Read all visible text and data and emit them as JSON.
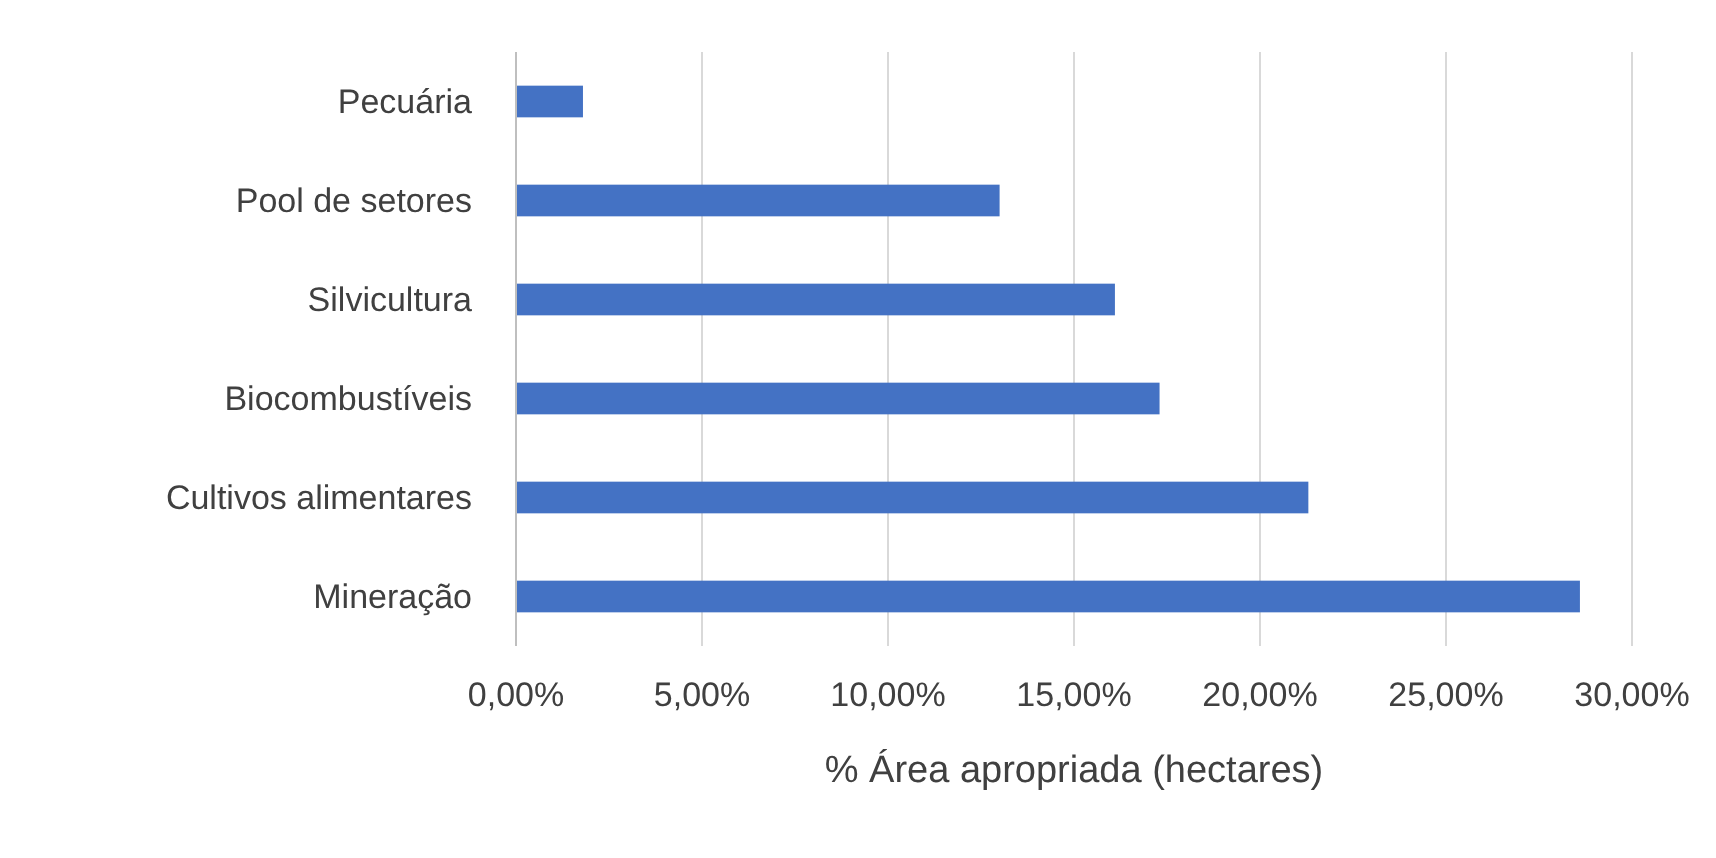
{
  "chart_data": {
    "type": "bar",
    "orientation": "horizontal",
    "xlabel": "% Área apropriada (hectares)",
    "categories": [
      "Pecuária",
      "Pool de setores",
      "Silvicultura",
      "Biocombustíveis",
      "Cultivos alimentares",
      "Mineração"
    ],
    "values": [
      1.8,
      13.0,
      16.1,
      17.3,
      21.3,
      28.6
    ],
    "color": "#4472c4",
    "xlim": [
      0,
      30
    ],
    "xticks": [
      {
        "value": 0,
        "label": "0,00%"
      },
      {
        "value": 5,
        "label": "5,00%"
      },
      {
        "value": 10,
        "label": "10,00%"
      },
      {
        "value": 15,
        "label": "15,00%"
      },
      {
        "value": 20,
        "label": "20,00%"
      },
      {
        "value": 25,
        "label": "25,00%"
      },
      {
        "value": 30,
        "label": "30,00%"
      }
    ],
    "grid": "x"
  }
}
